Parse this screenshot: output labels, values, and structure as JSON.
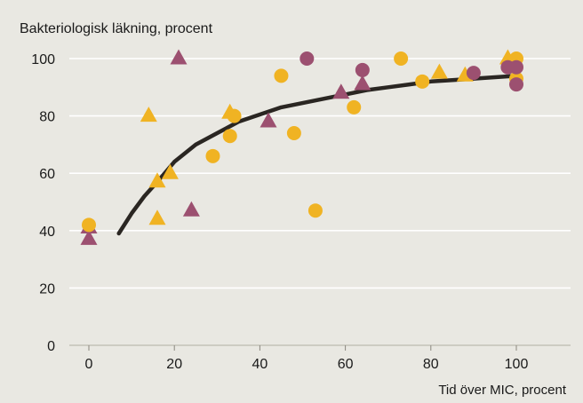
{
  "chart_data": {
    "type": "scatter",
    "ylabel": "Bakteriologisk läkning, procent",
    "xlabel": "Tid över MIC, procent",
    "xlim": [
      -5,
      112
    ],
    "ylim": [
      0,
      105
    ],
    "x_ticks": [
      0,
      20,
      40,
      60,
      80,
      100
    ],
    "y_ticks": [
      0,
      20,
      40,
      60,
      80,
      100
    ],
    "grid": "horizontal",
    "colors": {
      "yellow": "#f0b323",
      "purple": "#9c5070",
      "curve": "#2a2622",
      "grid": "#ffffff",
      "background": "#e9e8e2"
    },
    "series": [
      {
        "marker": "circle",
        "color": "#f0b323",
        "points": [
          [
            0,
            42
          ],
          [
            29,
            66
          ],
          [
            33,
            73
          ],
          [
            34,
            80
          ],
          [
            45,
            94
          ],
          [
            48,
            74
          ],
          [
            53,
            47
          ],
          [
            62,
            83
          ],
          [
            73,
            100
          ],
          [
            78,
            92
          ],
          [
            100,
            100
          ],
          [
            100,
            93
          ]
        ]
      },
      {
        "marker": "triangle",
        "color": "#f0b323",
        "points": [
          [
            14,
            80
          ],
          [
            16,
            57
          ],
          [
            16,
            44
          ],
          [
            19,
            60
          ],
          [
            33,
            81
          ],
          [
            82,
            95
          ],
          [
            88,
            94
          ],
          [
            98,
            100
          ]
        ]
      },
      {
        "marker": "circle",
        "color": "#9c5070",
        "points": [
          [
            51,
            100
          ],
          [
            64,
            96
          ],
          [
            90,
            95
          ],
          [
            98,
            97
          ],
          [
            100,
            97
          ],
          [
            100,
            91
          ]
        ]
      },
      {
        "marker": "triangle",
        "color": "#9c5070",
        "points": [
          [
            0,
            41
          ],
          [
            0,
            37
          ],
          [
            21,
            100
          ],
          [
            24,
            47
          ],
          [
            42,
            78
          ],
          [
            59,
            88
          ],
          [
            64,
            91
          ]
        ]
      },
      {
        "marker": "line",
        "color": "#2a2622",
        "points": [
          [
            7,
            39
          ],
          [
            10,
            46
          ],
          [
            13,
            52
          ],
          [
            16,
            57
          ],
          [
            20,
            64
          ],
          [
            25,
            70
          ],
          [
            30,
            74
          ],
          [
            35,
            78
          ],
          [
            40,
            80.5
          ],
          [
            45,
            83
          ],
          [
            50,
            84.5
          ],
          [
            55,
            86
          ],
          [
            60,
            87.5
          ],
          [
            65,
            89
          ],
          [
            70,
            90
          ],
          [
            75,
            91
          ],
          [
            80,
            92
          ],
          [
            85,
            92.5
          ],
          [
            90,
            93
          ],
          [
            95,
            93.5
          ],
          [
            100,
            94
          ]
        ]
      }
    ]
  }
}
